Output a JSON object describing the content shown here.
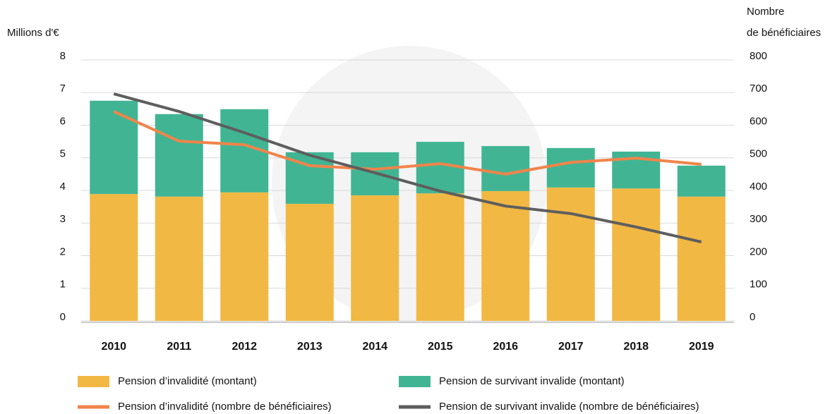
{
  "chart_data": {
    "type": "bar",
    "y_label": "Millions d'€",
    "y2_label_lines": [
      "Nombre",
      "de bénéficiaires"
    ],
    "categories": [
      "2010",
      "2011",
      "2012",
      "2013",
      "2014",
      "2015",
      "2016",
      "2017",
      "2018",
      "2019"
    ],
    "stacked": true,
    "series": [
      {
        "name": "Pension d’invalidité (montant)",
        "color": "#f2b844",
        "values": [
          3.89,
          3.81,
          3.94,
          3.59,
          3.85,
          3.91,
          3.98,
          4.09,
          4.06,
          3.81
        ]
      },
      {
        "name": "Pension de survivant invalide (montant)",
        "color": "#41b593",
        "values": [
          2.86,
          2.53,
          2.55,
          1.58,
          1.32,
          1.58,
          1.38,
          1.21,
          1.13,
          0.95
        ]
      },
      {
        "name": "Pension d’invalidité (nombre de bénéficiaires)",
        "type": "line",
        "axis": "y2",
        "color": "#f0844a",
        "values": [
          642,
          551,
          540,
          476,
          465,
          482,
          450,
          486,
          499,
          480
        ]
      },
      {
        "name": "Pension de survivant invalide (nombre de bénéficiaires)",
        "type": "line",
        "axis": "y2",
        "color": "#5e5e5e",
        "values": [
          696,
          642,
          577,
          508,
          454,
          398,
          352,
          329,
          288,
          242
        ]
      }
    ],
    "ylim": [
      0,
      8
    ],
    "yticks": [
      0,
      1,
      2,
      3,
      4,
      5,
      6,
      7,
      8
    ],
    "y2lim": [
      0,
      800
    ],
    "y2ticks": [
      0,
      100,
      200,
      300,
      400,
      500,
      600,
      700,
      800
    ],
    "grid": true
  }
}
